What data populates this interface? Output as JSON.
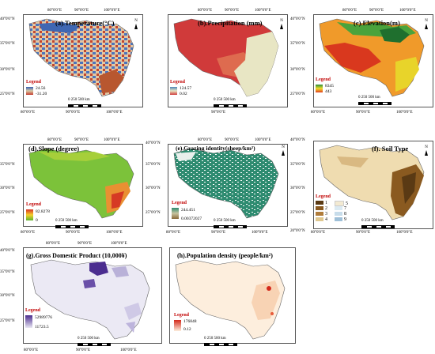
{
  "ticks": {
    "lon80": "80°0'0\"E",
    "lon90": "90°0'0\"E",
    "lon100": "100°0'0\"E",
    "lat40": "40°0'0\"N",
    "lat35": "35°0'0\"N",
    "lat30": "30°0'0\"N",
    "lat25": "25°0'0\"N",
    "lat20": "20°0'0\"N"
  },
  "north_label": "N",
  "scale_label": "0  250  500 km",
  "legend_title": "Legend",
  "panels": [
    {
      "title": "(a).Temperature(°C)",
      "legend": {
        "max": "24.56",
        "min": "-31.20"
      },
      "colors": [
        "#3a62b5",
        "#c43c2f"
      ]
    },
    {
      "title": "(b).Precipitation (mm)",
      "legend": {
        "max": "124.57",
        "min": "0.02"
      },
      "colors": [
        "#d8d8a8",
        "#d03a3a"
      ]
    },
    {
      "title": "(c).Elevation(m)",
      "legend": {
        "max": "8345",
        "min": "443"
      },
      "colors": [
        "#2a8a3a",
        "#e23b1f"
      ]
    },
    {
      "title": "(d).Slope  (degree)",
      "legend": {
        "max": "82.8278",
        "min": "0"
      },
      "colors": [
        "#d83225",
        "#5db32d"
      ]
    },
    {
      "title": "(e).Grazing identity(sheep/km²)",
      "legend": {
        "max": "244.451",
        "min": "0.00372027"
      },
      "colors": [
        "#2e8b70",
        "#8a6a3a"
      ]
    },
    {
      "title": "(f). Soil Type",
      "soil_classes": [
        "1",
        "2",
        "3",
        "4",
        "5",
        "7",
        "8",
        "9"
      ],
      "soil_colors": [
        "#5a3a14",
        "#8a5a20",
        "#b07c3a",
        "#e0c890",
        "#f3ead2",
        "#dbeaf2",
        "#c7dcea",
        "#9fc0d8"
      ]
    },
    {
      "title": "(g).Gross Domestic Product (10,000¥)",
      "legend": {
        "max": "52989776",
        "min": "11723.5"
      },
      "colors": [
        "#4b2d8f",
        "#e9e7f3"
      ]
    },
    {
      "title": "(h).Population density (people/km²)",
      "legend": {
        "max": "176848",
        "min": "0.12"
      },
      "colors": [
        "#d42a1c",
        "#fdeedd"
      ]
    }
  ]
}
